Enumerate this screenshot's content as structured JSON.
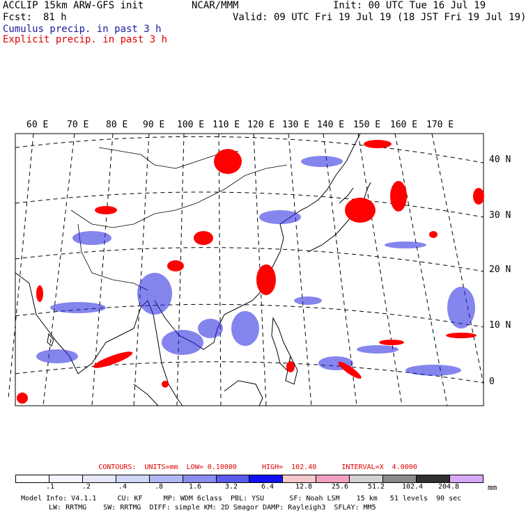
{
  "header": {
    "model": "ACCLIP 15km ARW-GFS init",
    "org": "NCAR/MMM",
    "init": "Init: 00 UTC Tue 16 Jul 19",
    "fcst_label": "Fcst:",
    "fcst_value": "81 h",
    "valid": "Valid: 09 UTC Fri 19 Jul 19 (18 JST Fri 19 Jul 19)",
    "legend_cumulus": "Cumulus precip. in past 3 h",
    "legend_explicit": "Explicit precip. in past 3 h"
  },
  "colors": {
    "cumulus": "#2020e0",
    "explicit": "#ff0000",
    "coast": "#000000",
    "grid": "#000000"
  },
  "map": {
    "lon_labels": [
      "60 E",
      "70 E",
      "80 E",
      "90 E",
      "100 E",
      "110 E",
      "120 E",
      "130 E",
      "140 E",
      "150 E",
      "160 E",
      "170 E"
    ],
    "lat_labels": [
      "40 N",
      "30 N",
      "20 N",
      "10 N",
      "0"
    ]
  },
  "contours": {
    "text": "CONTOURS:  UNITS=mm  LOW= 0.10000      HIGH=  102.40      INTERVAL=X  4.0000"
  },
  "colorbar": {
    "colors": [
      "#ffffff",
      "#f4f4fc",
      "#e6e8fa",
      "#cfd8f6",
      "#b0b8f2",
      "#8a8cee",
      "#5a5aec",
      "#1010f0",
      "#f4c8cc",
      "#f0a0c0",
      "#d2d2d2",
      "#8a8a8a",
      "#303030",
      "#d8a8f8"
    ],
    "ticks": [
      ".1",
      ".2",
      ".4",
      ".8",
      "1.6",
      "3.2",
      "6.4",
      "12.8",
      "25.6",
      "51.2",
      "102.4",
      "204.8"
    ],
    "units": "mm"
  },
  "model_info": {
    "line1": "Model Info: V4.1.1     CU: KF     MP: WDM 6class  PBL: YSU      SF: Noah LSM    15 km   51 levels  90 sec",
    "line2": "LW: RRTMG    SW: RRTMG  DIFF: simple KM: 2D Smagor DAMP: Rayleigh3  SFLAY: MM5"
  }
}
